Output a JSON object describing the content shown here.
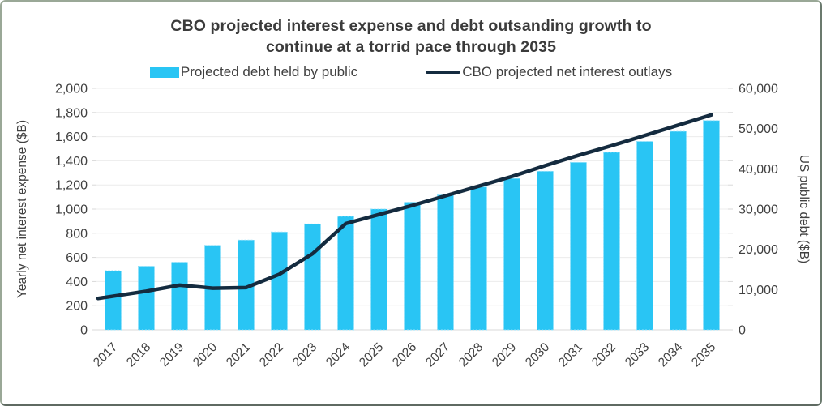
{
  "window": {
    "frame_border_color": "#8fa08d",
    "background": "#ffffff"
  },
  "chart_data": {
    "type": "bar+line combo",
    "title_lines": [
      "CBO projected interest expense and debt outsanding growth to",
      "continue at a torrid pace through 2035"
    ],
    "categories": [
      "2017",
      "2018",
      "2019",
      "2020",
      "2021",
      "2022",
      "2023",
      "2024",
      "2025",
      "2026",
      "2027",
      "2028",
      "2029",
      "2030",
      "2031",
      "2032",
      "2033",
      "2034",
      "2035"
    ],
    "series": [
      {
        "name": "Projected debt held by public",
        "type": "bar",
        "axis": "right",
        "color": "#29C5F4",
        "values": [
          14700,
          15800,
          16800,
          21000,
          22300,
          24300,
          26300,
          28200,
          30000,
          31700,
          33500,
          35500,
          37600,
          39400,
          41600,
          44100,
          46800,
          49300,
          52000
        ]
      },
      {
        "name": "CBO projected net interest outlays",
        "type": "line",
        "axis": "left",
        "color": "#142B3F",
        "values": [
          260,
          320,
          370,
          345,
          350,
          460,
          630,
          880,
          955,
          1030,
          1110,
          1190,
          1270,
          1360,
          1445,
          1525,
          1610,
          1695,
          1780
        ]
      }
    ],
    "left_axis": {
      "label": "Yearly net interest expense ($B)",
      "min": 0,
      "max": 2000,
      "step": 200
    },
    "right_axis": {
      "label": "US public debt ($B)",
      "min": 0,
      "max": 60000,
      "step": 10000
    },
    "grid": true,
    "legend_position": "top",
    "x_labels_rotation_deg": -45,
    "line_starts_at_plot_left_edge": true
  }
}
